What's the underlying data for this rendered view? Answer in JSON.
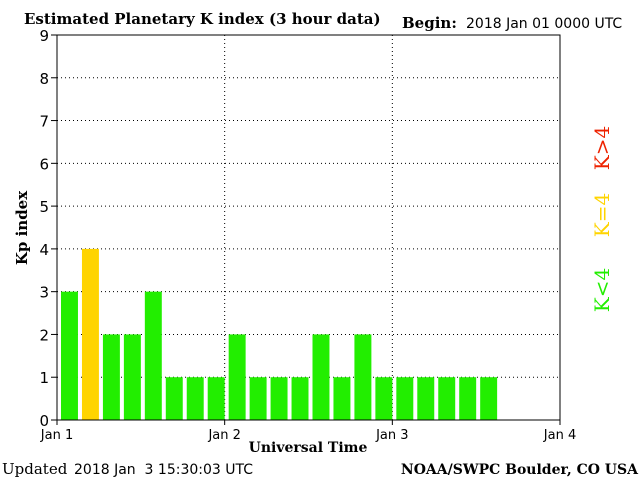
{
  "chart_data": {
    "type": "bar",
    "title": "Estimated Planetary K index (3 hour data)",
    "begin_label": "Begin:",
    "begin_value": "2018 Jan 01 0000 UTC",
    "xlabel": "Universal Time",
    "ylabel": "Kp index",
    "ylim": [
      0,
      9
    ],
    "yticks": [
      "0",
      "1",
      "2",
      "3",
      "4",
      "5",
      "6",
      "7",
      "8",
      "9"
    ],
    "x_range_days": [
      0,
      3
    ],
    "xticks": [
      {
        "day": 0,
        "label": "Jan 1"
      },
      {
        "day": 1,
        "label": "Jan 2"
      },
      {
        "day": 2,
        "label": "Jan 3"
      },
      {
        "day": 3,
        "label": "Jan 4"
      }
    ],
    "interval_hours": 3,
    "values": [
      3,
      4,
      2,
      2,
      3,
      1,
      1,
      1,
      2,
      1,
      1,
      1,
      2,
      1,
      2,
      1,
      1,
      1,
      1,
      1,
      1
    ],
    "grid": "dotted",
    "legend": [
      {
        "label": "K<4",
        "color": "#22ee00"
      },
      {
        "label": "K=4",
        "color": "#ffd400"
      },
      {
        "label": "K>4",
        "color": "#ee2200"
      }
    ],
    "colors": {
      "low": "#22ee00",
      "equal": "#ffd400",
      "high": "#ee2200"
    },
    "updated_label": "Updated",
    "updated_value": "2018 Jan  3 15:30:03 UTC",
    "credit": "NOAA/SWPC Boulder, CO USA"
  }
}
